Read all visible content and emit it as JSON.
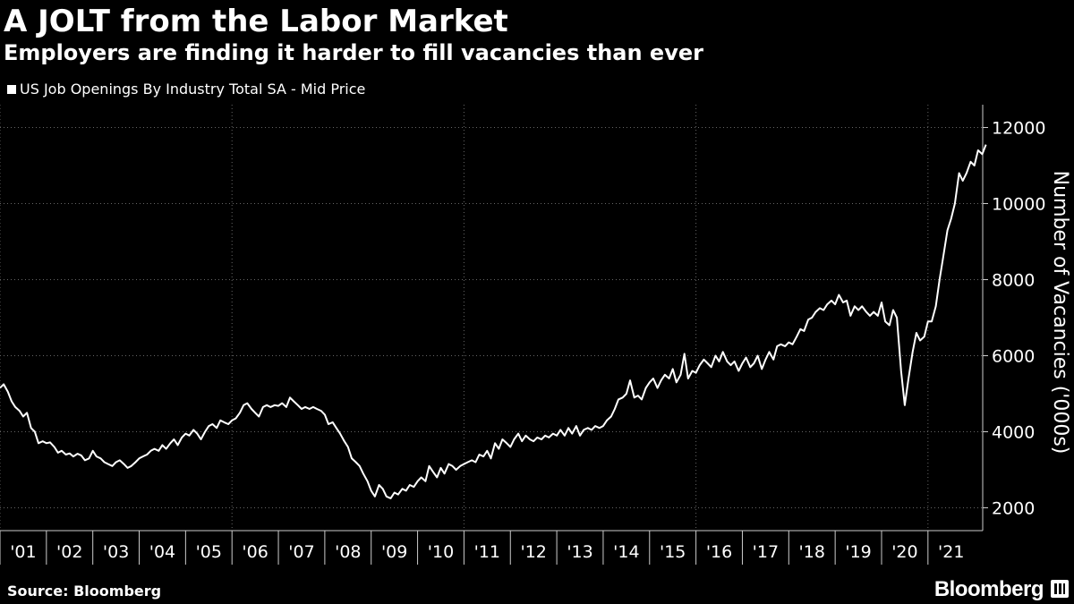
{
  "header": {
    "title": "A JOLT from the Labor Market",
    "subtitle": "Employers are finding it harder to fill vacancies than ever"
  },
  "legend": {
    "label": "US Job Openings By Industry Total SA - Mid Price"
  },
  "footer": {
    "source": "Source: Bloomberg",
    "brand": "Bloomberg"
  },
  "colors": {
    "background": "#000000",
    "line": "#ffffff",
    "grid": "#666666"
  },
  "chart_data": {
    "type": "line",
    "title": "A JOLT from the Labor Market",
    "subtitle": "Employers are finding it harder to fill vacancies than ever",
    "ylabel": "Number of Vacancies ('000s)",
    "xlabel": "",
    "ylim": [
      1400,
      12600
    ],
    "yticks": [
      2000,
      4000,
      6000,
      8000,
      10000,
      12000
    ],
    "xlim": [
      2001.0,
      2022.18
    ],
    "xticks": [
      {
        "x": 2001,
        "label": "'01"
      },
      {
        "x": 2002,
        "label": "'02"
      },
      {
        "x": 2003,
        "label": "'03"
      },
      {
        "x": 2004,
        "label": "'04"
      },
      {
        "x": 2005,
        "label": "'05"
      },
      {
        "x": 2006,
        "label": "'06"
      },
      {
        "x": 2007,
        "label": "'07"
      },
      {
        "x": 2008,
        "label": "'08"
      },
      {
        "x": 2009,
        "label": "'09"
      },
      {
        "x": 2010,
        "label": "'10"
      },
      {
        "x": 2011,
        "label": "'11"
      },
      {
        "x": 2012,
        "label": "'12"
      },
      {
        "x": 2013,
        "label": "'13"
      },
      {
        "x": 2014,
        "label": "'14"
      },
      {
        "x": 2015,
        "label": "'15"
      },
      {
        "x": 2016,
        "label": "'16"
      },
      {
        "x": 2017,
        "label": "'17"
      },
      {
        "x": 2018,
        "label": "'18"
      },
      {
        "x": 2019,
        "label": "'19"
      },
      {
        "x": 2020,
        "label": "'20"
      },
      {
        "x": 2021,
        "label": "'21"
      }
    ],
    "grid": true,
    "legend_position": "top-left",
    "series": [
      {
        "name": "US Job Openings By Industry Total SA - Mid Price",
        "color": "#ffffff",
        "points": [
          [
            2001.0,
            5150
          ],
          [
            2001.08,
            5250
          ],
          [
            2001.17,
            5050
          ],
          [
            2001.25,
            4800
          ],
          [
            2001.33,
            4650
          ],
          [
            2001.42,
            4550
          ],
          [
            2001.5,
            4400
          ],
          [
            2001.58,
            4500
          ],
          [
            2001.67,
            4100
          ],
          [
            2001.75,
            4000
          ],
          [
            2001.83,
            3700
          ],
          [
            2001.92,
            3750
          ],
          [
            2002.0,
            3700
          ],
          [
            2002.08,
            3720
          ],
          [
            2002.17,
            3600
          ],
          [
            2002.25,
            3450
          ],
          [
            2002.33,
            3500
          ],
          [
            2002.42,
            3400
          ],
          [
            2002.5,
            3430
          ],
          [
            2002.58,
            3350
          ],
          [
            2002.67,
            3420
          ],
          [
            2002.75,
            3380
          ],
          [
            2002.83,
            3250
          ],
          [
            2002.92,
            3300
          ],
          [
            2003.0,
            3500
          ],
          [
            2003.08,
            3350
          ],
          [
            2003.17,
            3300
          ],
          [
            2003.25,
            3200
          ],
          [
            2003.33,
            3150
          ],
          [
            2003.42,
            3100
          ],
          [
            2003.5,
            3200
          ],
          [
            2003.58,
            3250
          ],
          [
            2003.67,
            3150
          ],
          [
            2003.75,
            3050
          ],
          [
            2003.83,
            3100
          ],
          [
            2003.92,
            3200
          ],
          [
            2004.0,
            3300
          ],
          [
            2004.08,
            3350
          ],
          [
            2004.17,
            3400
          ],
          [
            2004.25,
            3500
          ],
          [
            2004.33,
            3550
          ],
          [
            2004.42,
            3500
          ],
          [
            2004.5,
            3650
          ],
          [
            2004.58,
            3550
          ],
          [
            2004.67,
            3700
          ],
          [
            2004.75,
            3800
          ],
          [
            2004.83,
            3650
          ],
          [
            2004.92,
            3850
          ],
          [
            2005.0,
            3950
          ],
          [
            2005.08,
            3900
          ],
          [
            2005.17,
            4050
          ],
          [
            2005.25,
            3950
          ],
          [
            2005.33,
            3800
          ],
          [
            2005.42,
            4000
          ],
          [
            2005.5,
            4150
          ],
          [
            2005.58,
            4200
          ],
          [
            2005.67,
            4100
          ],
          [
            2005.75,
            4300
          ],
          [
            2005.83,
            4250
          ],
          [
            2005.92,
            4200
          ],
          [
            2006.0,
            4300
          ],
          [
            2006.08,
            4350
          ],
          [
            2006.17,
            4500
          ],
          [
            2006.25,
            4700
          ],
          [
            2006.33,
            4750
          ],
          [
            2006.42,
            4600
          ],
          [
            2006.5,
            4500
          ],
          [
            2006.58,
            4400
          ],
          [
            2006.67,
            4650
          ],
          [
            2006.75,
            4700
          ],
          [
            2006.83,
            4650
          ],
          [
            2006.92,
            4700
          ],
          [
            2007.0,
            4680
          ],
          [
            2007.08,
            4750
          ],
          [
            2007.17,
            4650
          ],
          [
            2007.25,
            4900
          ],
          [
            2007.33,
            4800
          ],
          [
            2007.42,
            4700
          ],
          [
            2007.5,
            4600
          ],
          [
            2007.58,
            4650
          ],
          [
            2007.67,
            4600
          ],
          [
            2007.75,
            4650
          ],
          [
            2007.83,
            4600
          ],
          [
            2007.92,
            4550
          ],
          [
            2008.0,
            4450
          ],
          [
            2008.08,
            4200
          ],
          [
            2008.17,
            4250
          ],
          [
            2008.25,
            4100
          ],
          [
            2008.33,
            3950
          ],
          [
            2008.42,
            3750
          ],
          [
            2008.5,
            3600
          ],
          [
            2008.58,
            3300
          ],
          [
            2008.67,
            3200
          ],
          [
            2008.75,
            3100
          ],
          [
            2008.83,
            2900
          ],
          [
            2008.92,
            2700
          ],
          [
            2009.0,
            2450
          ],
          [
            2009.08,
            2300
          ],
          [
            2009.17,
            2600
          ],
          [
            2009.25,
            2500
          ],
          [
            2009.33,
            2300
          ],
          [
            2009.42,
            2250
          ],
          [
            2009.5,
            2400
          ],
          [
            2009.58,
            2350
          ],
          [
            2009.67,
            2500
          ],
          [
            2009.75,
            2450
          ],
          [
            2009.83,
            2600
          ],
          [
            2009.92,
            2550
          ],
          [
            2010.0,
            2700
          ],
          [
            2010.08,
            2800
          ],
          [
            2010.17,
            2700
          ],
          [
            2010.25,
            3100
          ],
          [
            2010.33,
            2950
          ],
          [
            2010.42,
            2800
          ],
          [
            2010.5,
            3050
          ],
          [
            2010.58,
            2900
          ],
          [
            2010.67,
            3150
          ],
          [
            2010.75,
            3100
          ],
          [
            2010.83,
            3000
          ],
          [
            2010.92,
            3100
          ],
          [
            2011.0,
            3150
          ],
          [
            2011.08,
            3200
          ],
          [
            2011.17,
            3250
          ],
          [
            2011.25,
            3200
          ],
          [
            2011.33,
            3400
          ],
          [
            2011.42,
            3350
          ],
          [
            2011.5,
            3500
          ],
          [
            2011.58,
            3300
          ],
          [
            2011.67,
            3700
          ],
          [
            2011.75,
            3550
          ],
          [
            2011.83,
            3800
          ],
          [
            2011.92,
            3700
          ],
          [
            2012.0,
            3600
          ],
          [
            2012.08,
            3800
          ],
          [
            2012.17,
            3950
          ],
          [
            2012.25,
            3750
          ],
          [
            2012.33,
            3900
          ],
          [
            2012.42,
            3800
          ],
          [
            2012.5,
            3750
          ],
          [
            2012.58,
            3850
          ],
          [
            2012.67,
            3800
          ],
          [
            2012.75,
            3900
          ],
          [
            2012.83,
            3850
          ],
          [
            2012.92,
            3950
          ],
          [
            2013.0,
            3900
          ],
          [
            2013.08,
            4050
          ],
          [
            2013.17,
            3900
          ],
          [
            2013.25,
            4100
          ],
          [
            2013.33,
            3950
          ],
          [
            2013.42,
            4150
          ],
          [
            2013.5,
            3900
          ],
          [
            2013.58,
            4050
          ],
          [
            2013.67,
            4100
          ],
          [
            2013.75,
            4050
          ],
          [
            2013.83,
            4150
          ],
          [
            2013.92,
            4100
          ],
          [
            2014.0,
            4150
          ],
          [
            2014.08,
            4300
          ],
          [
            2014.17,
            4400
          ],
          [
            2014.25,
            4600
          ],
          [
            2014.33,
            4850
          ],
          [
            2014.42,
            4900
          ],
          [
            2014.5,
            5000
          ],
          [
            2014.58,
            5350
          ],
          [
            2014.67,
            4900
          ],
          [
            2014.75,
            4950
          ],
          [
            2014.83,
            4850
          ],
          [
            2014.92,
            5150
          ],
          [
            2015.0,
            5300
          ],
          [
            2015.08,
            5400
          ],
          [
            2015.17,
            5150
          ],
          [
            2015.25,
            5350
          ],
          [
            2015.33,
            5500
          ],
          [
            2015.42,
            5400
          ],
          [
            2015.5,
            5650
          ],
          [
            2015.58,
            5300
          ],
          [
            2015.67,
            5500
          ],
          [
            2015.75,
            6050
          ],
          [
            2015.83,
            5400
          ],
          [
            2015.92,
            5600
          ],
          [
            2016.0,
            5550
          ],
          [
            2016.08,
            5750
          ],
          [
            2016.17,
            5900
          ],
          [
            2016.25,
            5800
          ],
          [
            2016.33,
            5700
          ],
          [
            2016.42,
            6000
          ],
          [
            2016.5,
            5850
          ],
          [
            2016.58,
            6100
          ],
          [
            2016.67,
            5850
          ],
          [
            2016.75,
            5750
          ],
          [
            2016.83,
            5850
          ],
          [
            2016.92,
            5600
          ],
          [
            2017.0,
            5800
          ],
          [
            2017.08,
            5950
          ],
          [
            2017.17,
            5700
          ],
          [
            2017.25,
            5800
          ],
          [
            2017.33,
            6000
          ],
          [
            2017.42,
            5650
          ],
          [
            2017.5,
            5900
          ],
          [
            2017.58,
            6100
          ],
          [
            2017.67,
            5900
          ],
          [
            2017.75,
            6250
          ],
          [
            2017.83,
            6300
          ],
          [
            2017.92,
            6250
          ],
          [
            2018.0,
            6350
          ],
          [
            2018.08,
            6300
          ],
          [
            2018.17,
            6500
          ],
          [
            2018.25,
            6700
          ],
          [
            2018.33,
            6650
          ],
          [
            2018.42,
            6950
          ],
          [
            2018.5,
            7000
          ],
          [
            2018.58,
            7150
          ],
          [
            2018.67,
            7250
          ],
          [
            2018.75,
            7200
          ],
          [
            2018.83,
            7350
          ],
          [
            2018.92,
            7450
          ],
          [
            2019.0,
            7350
          ],
          [
            2019.08,
            7600
          ],
          [
            2019.17,
            7400
          ],
          [
            2019.25,
            7450
          ],
          [
            2019.33,
            7050
          ],
          [
            2019.42,
            7300
          ],
          [
            2019.5,
            7200
          ],
          [
            2019.58,
            7300
          ],
          [
            2019.67,
            7150
          ],
          [
            2019.75,
            7050
          ],
          [
            2019.83,
            7150
          ],
          [
            2019.92,
            7050
          ],
          [
            2020.0,
            7400
          ],
          [
            2020.08,
            6900
          ],
          [
            2020.17,
            6800
          ],
          [
            2020.25,
            7200
          ],
          [
            2020.33,
            7000
          ],
          [
            2020.42,
            5600
          ],
          [
            2020.5,
            4700
          ],
          [
            2020.58,
            5400
          ],
          [
            2020.67,
            6100
          ],
          [
            2020.75,
            6600
          ],
          [
            2020.83,
            6400
          ],
          [
            2020.92,
            6500
          ],
          [
            2021.0,
            6900
          ],
          [
            2021.08,
            6900
          ],
          [
            2021.17,
            7300
          ],
          [
            2021.25,
            8000
          ],
          [
            2021.33,
            8600
          ],
          [
            2021.42,
            9300
          ],
          [
            2021.5,
            9600
          ],
          [
            2021.58,
            10000
          ],
          [
            2021.67,
            10800
          ],
          [
            2021.75,
            10600
          ],
          [
            2021.83,
            10800
          ],
          [
            2021.92,
            11100
          ],
          [
            2022.0,
            11000
          ],
          [
            2022.08,
            11400
          ],
          [
            2022.17,
            11300
          ],
          [
            2022.25,
            11550
          ]
        ]
      }
    ]
  }
}
